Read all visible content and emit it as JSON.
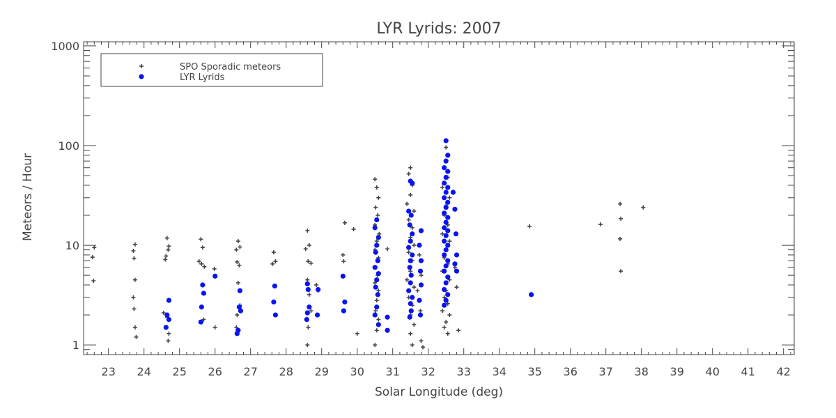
{
  "chart_data": {
    "type": "scatter",
    "title": "LYR Lyrids: 2007",
    "xlabel": "Solar Longitude (deg)",
    "ylabel": "Meteors / Hour",
    "xlim": [
      22.3,
      42.3
    ],
    "ylim": [
      0.8,
      1100
    ],
    "yscale": "log",
    "x_ticks": [
      "23",
      "24",
      "25",
      "26",
      "27",
      "28",
      "29",
      "30",
      "31",
      "32",
      "33",
      "34",
      "35",
      "36",
      "37",
      "38",
      "39",
      "40",
      "41",
      "42"
    ],
    "y_ticks": [
      {
        "value": 1,
        "label": "1"
      },
      {
        "value": 10,
        "label": "10"
      },
      {
        "value": 100,
        "label": "100"
      },
      {
        "value": 1000,
        "label": "1000"
      }
    ],
    "grid": false,
    "legend_position": "top-left",
    "series": [
      {
        "name": "SPO Sporadic meteors",
        "marker": "plus",
        "color": "#444444",
        "points": [
          [
            22.6,
            9.5
          ],
          [
            22.55,
            7.6
          ],
          [
            22.58,
            4.4
          ],
          [
            23.7,
            8.8
          ],
          [
            23.75,
            10.2
          ],
          [
            23.72,
            7.4
          ],
          [
            23.75,
            4.5
          ],
          [
            23.7,
            3.0
          ],
          [
            23.72,
            2.3
          ],
          [
            23.75,
            1.5
          ],
          [
            23.78,
            1.2
          ],
          [
            24.65,
            11.8
          ],
          [
            24.7,
            9.8
          ],
          [
            24.68,
            9.0
          ],
          [
            24.6,
            7.2
          ],
          [
            24.62,
            7.8
          ],
          [
            24.55,
            2.1
          ],
          [
            24.65,
            1.9
          ],
          [
            24.7,
            1.3
          ],
          [
            24.68,
            1.1
          ],
          [
            25.6,
            11.5
          ],
          [
            25.65,
            9.5
          ],
          [
            25.55,
            6.9
          ],
          [
            25.62,
            6.5
          ],
          [
            25.7,
            6.1
          ],
          [
            25.68,
            1.8
          ],
          [
            25.98,
            5.8
          ],
          [
            26.0,
            1.5
          ],
          [
            26.65,
            11.0
          ],
          [
            26.7,
            9.6
          ],
          [
            26.6,
            9.0
          ],
          [
            26.62,
            6.8
          ],
          [
            26.68,
            6.3
          ],
          [
            26.65,
            4.2
          ],
          [
            26.7,
            2.5
          ],
          [
            26.62,
            2.0
          ],
          [
            26.6,
            1.5
          ],
          [
            27.65,
            8.5
          ],
          [
            27.7,
            6.9
          ],
          [
            27.62,
            6.5
          ],
          [
            28.6,
            14.0
          ],
          [
            28.65,
            10.0
          ],
          [
            28.55,
            9.2
          ],
          [
            28.62,
            6.9
          ],
          [
            28.7,
            6.6
          ],
          [
            28.6,
            4.5
          ],
          [
            28.65,
            3.2
          ],
          [
            28.7,
            2.2
          ],
          [
            28.62,
            1.5
          ],
          [
            28.6,
            1.0
          ],
          [
            28.85,
            4.0
          ],
          [
            28.9,
            3.5
          ],
          [
            28.88,
            2.0
          ],
          [
            29.65,
            16.8
          ],
          [
            29.6,
            8.0
          ],
          [
            29.62,
            6.9
          ],
          [
            29.9,
            14.5
          ],
          [
            30.0,
            1.3
          ],
          [
            30.5,
            46
          ],
          [
            30.55,
            38
          ],
          [
            30.6,
            30
          ],
          [
            30.52,
            24
          ],
          [
            30.58,
            20
          ],
          [
            30.5,
            16
          ],
          [
            30.62,
            13
          ],
          [
            30.55,
            11
          ],
          [
            30.5,
            9
          ],
          [
            30.6,
            7.5
          ],
          [
            30.52,
            6
          ],
          [
            30.58,
            5
          ],
          [
            30.5,
            4.2
          ],
          [
            30.6,
            3.5
          ],
          [
            30.55,
            2.8
          ],
          [
            30.52,
            2.2
          ],
          [
            30.6,
            1.8
          ],
          [
            30.55,
            1.4
          ],
          [
            30.5,
            1.0
          ],
          [
            30.85,
            9.2
          ],
          [
            31.5,
            60
          ],
          [
            31.45,
            52
          ],
          [
            31.55,
            40
          ],
          [
            31.5,
            32
          ],
          [
            31.4,
            26
          ],
          [
            31.6,
            22
          ],
          [
            31.45,
            18
          ],
          [
            31.55,
            15
          ],
          [
            31.5,
            12
          ],
          [
            31.6,
            10
          ],
          [
            31.45,
            8.5
          ],
          [
            31.55,
            7
          ],
          [
            31.5,
            5.5
          ],
          [
            31.4,
            4.5
          ],
          [
            31.6,
            3.8
          ],
          [
            31.45,
            3.0
          ],
          [
            31.55,
            2.5
          ],
          [
            31.5,
            2.0
          ],
          [
            31.6,
            1.6
          ],
          [
            31.5,
            1.3
          ],
          [
            31.55,
            1.0
          ],
          [
            31.75,
            8.0
          ],
          [
            31.8,
            5.0
          ],
          [
            31.7,
            3.5
          ],
          [
            31.78,
            2.2
          ],
          [
            31.8,
            1.1
          ],
          [
            31.85,
            0.95
          ],
          [
            32.5,
            96
          ],
          [
            32.45,
            60
          ],
          [
            32.55,
            48
          ],
          [
            32.4,
            38
          ],
          [
            32.6,
            30
          ],
          [
            32.5,
            25
          ],
          [
            32.45,
            20
          ],
          [
            32.55,
            16
          ],
          [
            32.4,
            13
          ],
          [
            32.6,
            11
          ],
          [
            32.5,
            9
          ],
          [
            32.45,
            7.5
          ],
          [
            32.55,
            6.5
          ],
          [
            32.4,
            5.5
          ],
          [
            32.6,
            4.5
          ],
          [
            32.5,
            3.5
          ],
          [
            32.45,
            3.0
          ],
          [
            32.55,
            2.6
          ],
          [
            32.4,
            2.2
          ],
          [
            32.6,
            2.0
          ],
          [
            32.5,
            1.7
          ],
          [
            32.45,
            1.5
          ],
          [
            32.55,
            1.3
          ],
          [
            32.8,
            3.8
          ],
          [
            32.85,
            1.4
          ],
          [
            32.75,
            6.0
          ],
          [
            34.85,
            15.5
          ],
          [
            36.85,
            16.2
          ],
          [
            37.4,
            26
          ],
          [
            37.42,
            18.5
          ],
          [
            37.4,
            11.6
          ],
          [
            37.42,
            5.5
          ],
          [
            38.05,
            24
          ]
        ]
      },
      {
        "name": "LYR Lyrids",
        "marker": "dot",
        "color": "#0a14f0",
        "points": [
          [
            24.65,
            2.0
          ],
          [
            24.7,
            2.8
          ],
          [
            24.62,
            1.5
          ],
          [
            24.7,
            1.8
          ],
          [
            25.65,
            4.0
          ],
          [
            25.68,
            3.3
          ],
          [
            25.62,
            2.4
          ],
          [
            25.6,
            1.7
          ],
          [
            26.0,
            4.9
          ],
          [
            26.7,
            3.5
          ],
          [
            26.68,
            2.4
          ],
          [
            26.72,
            2.2
          ],
          [
            26.65,
            1.4
          ],
          [
            26.62,
            1.3
          ],
          [
            27.68,
            3.9
          ],
          [
            27.65,
            2.7
          ],
          [
            27.7,
            2.0
          ],
          [
            28.6,
            4.1
          ],
          [
            28.62,
            3.6
          ],
          [
            28.65,
            2.4
          ],
          [
            28.6,
            2.1
          ],
          [
            28.58,
            1.8
          ],
          [
            28.9,
            3.6
          ],
          [
            28.88,
            2.0
          ],
          [
            29.6,
            4.9
          ],
          [
            29.65,
            2.7
          ],
          [
            29.62,
            2.2
          ],
          [
            30.55,
            18
          ],
          [
            30.5,
            15
          ],
          [
            30.6,
            12
          ],
          [
            30.55,
            10
          ],
          [
            30.52,
            8.5
          ],
          [
            30.58,
            7
          ],
          [
            30.5,
            6
          ],
          [
            30.6,
            5.2
          ],
          [
            30.55,
            4.5
          ],
          [
            30.52,
            3.8
          ],
          [
            30.58,
            3.2
          ],
          [
            30.55,
            2.4
          ],
          [
            30.5,
            2.0
          ],
          [
            30.6,
            1.6
          ],
          [
            30.85,
            1.9
          ],
          [
            30.85,
            1.4
          ],
          [
            31.5,
            44
          ],
          [
            31.55,
            42
          ],
          [
            31.45,
            22
          ],
          [
            31.52,
            20
          ],
          [
            31.48,
            16
          ],
          [
            31.55,
            13
          ],
          [
            31.5,
            11
          ],
          [
            31.45,
            9.5
          ],
          [
            31.55,
            8
          ],
          [
            31.5,
            7
          ],
          [
            31.48,
            6
          ],
          [
            31.52,
            5
          ],
          [
            31.5,
            4.2
          ],
          [
            31.45,
            3.5
          ],
          [
            31.55,
            3.0
          ],
          [
            31.5,
            2.6
          ],
          [
            31.52,
            2.2
          ],
          [
            31.48,
            1.9
          ],
          [
            31.8,
            14
          ],
          [
            31.75,
            10
          ],
          [
            31.8,
            7
          ],
          [
            31.78,
            5.5
          ],
          [
            31.8,
            4.0
          ],
          [
            31.75,
            2.8
          ],
          [
            31.78,
            2.0
          ],
          [
            32.5,
            112
          ],
          [
            32.55,
            80
          ],
          [
            32.5,
            70
          ],
          [
            32.45,
            60
          ],
          [
            32.55,
            55
          ],
          [
            32.5,
            48
          ],
          [
            32.45,
            42
          ],
          [
            32.55,
            38
          ],
          [
            32.5,
            34
          ],
          [
            32.45,
            30
          ],
          [
            32.55,
            27
          ],
          [
            32.5,
            24
          ],
          [
            32.45,
            21
          ],
          [
            32.55,
            19
          ],
          [
            32.5,
            17
          ],
          [
            32.45,
            15
          ],
          [
            32.55,
            14
          ],
          [
            32.5,
            12.5
          ],
          [
            32.45,
            11
          ],
          [
            32.55,
            10
          ],
          [
            32.5,
            9
          ],
          [
            32.45,
            8
          ],
          [
            32.55,
            7
          ],
          [
            32.5,
            6.2
          ],
          [
            32.45,
            5.5
          ],
          [
            32.55,
            4.8
          ],
          [
            32.5,
            4.2
          ],
          [
            32.45,
            3.6
          ],
          [
            32.55,
            3.2
          ],
          [
            32.5,
            2.8
          ],
          [
            32.45,
            2.5
          ],
          [
            32.75,
            23
          ],
          [
            32.7,
            34
          ],
          [
            32.78,
            13
          ],
          [
            32.8,
            8
          ],
          [
            32.75,
            6.5
          ],
          [
            32.8,
            5.5
          ],
          [
            34.9,
            3.2
          ]
        ]
      }
    ]
  }
}
